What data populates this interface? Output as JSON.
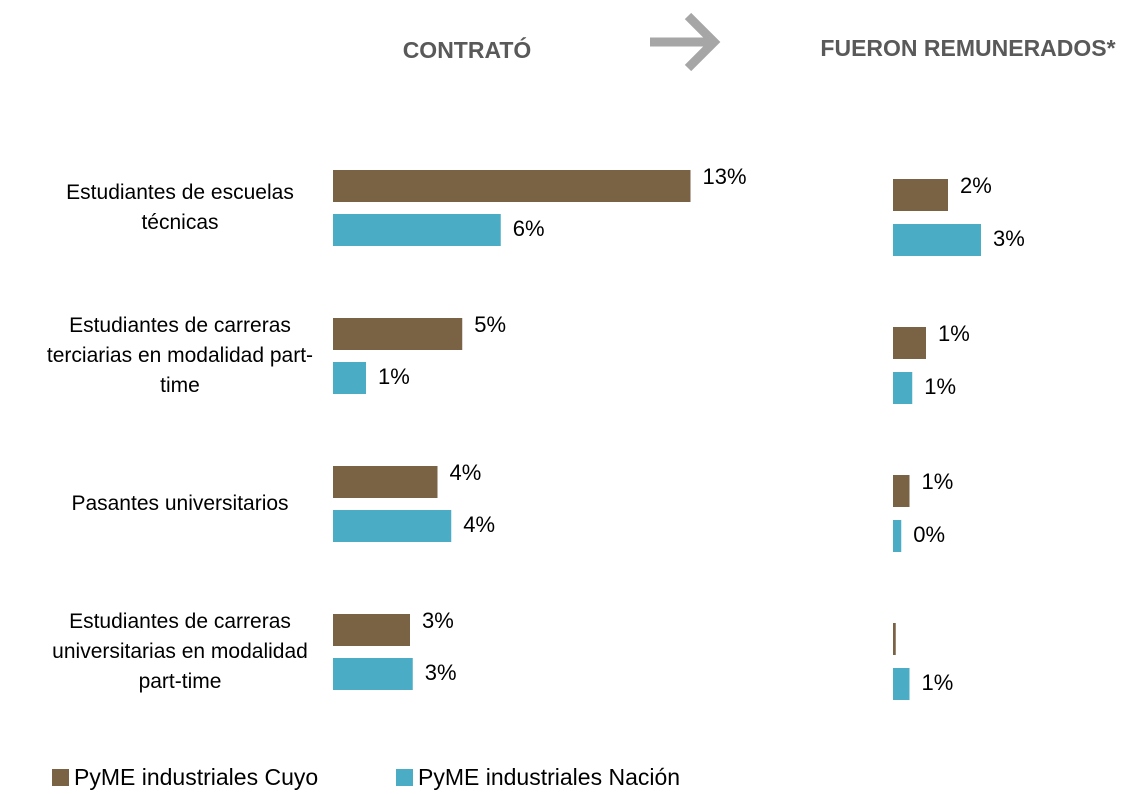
{
  "chart_data": [
    {
      "type": "bar",
      "orientation": "horizontal",
      "title": "CONTRATÓ",
      "categories": [
        "Estudiantes de escuelas técnicas",
        "Estudiantes de carreras terciarias en modalidad part-time",
        "Pasantes universitarios",
        "Estudiantes de carreras universitarias en modalidad part-time"
      ],
      "series": [
        {
          "name": "PyME industriales Cuyo",
          "color": "#7a6245",
          "values": [
            13.0,
            4.7,
            3.8,
            2.8
          ],
          "value_labels": [
            "13%",
            "5%",
            "4%",
            "3%"
          ]
        },
        {
          "name": "PyME industriales Nación",
          "color": "#4bacc6",
          "values": [
            6.1,
            1.2,
            4.3,
            2.9
          ],
          "value_labels": [
            "6%",
            "1%",
            "4%",
            "3%"
          ]
        }
      ]
    },
    {
      "type": "bar",
      "orientation": "horizontal",
      "title": "FUERON REMUNERADOS*",
      "series": [
        {
          "color": "#7a6245",
          "values": [
            2.0,
            1.2,
            0.6,
            0.1
          ],
          "value_labels": [
            "2%",
            "1%",
            "1%",
            null
          ]
        },
        {
          "color": "#4bacc6",
          "values": [
            3.2,
            0.7,
            0.3,
            0.6
          ],
          "value_labels": [
            "3%",
            "1%",
            "0%",
            "1%"
          ]
        }
      ]
    }
  ]
}
